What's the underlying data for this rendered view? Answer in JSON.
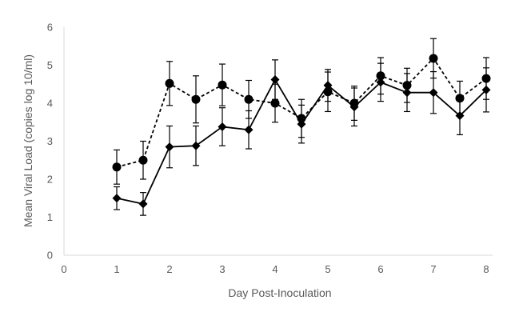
{
  "chart_data": {
    "type": "line",
    "title": "",
    "xlabel": "Day Post-Inoculation",
    "ylabel": "Mean Viral Load (copies log 10/ml)",
    "xlim": [
      0,
      8
    ],
    "ylim": [
      0,
      6
    ],
    "x_ticks": [
      "0",
      "1",
      "2",
      "3",
      "4",
      "5",
      "6",
      "7",
      "8"
    ],
    "y_ticks": [
      "0",
      "1",
      "2",
      "3",
      "4",
      "5",
      "6"
    ],
    "grid": false,
    "legend": "none",
    "x": [
      1,
      1.5,
      2,
      2.5,
      3,
      3.5,
      4,
      4.5,
      5,
      5.5,
      6,
      6.5,
      7,
      7.5,
      8
    ],
    "series": [
      {
        "style": "solid",
        "marker": "diamond",
        "color": "#000000",
        "values": [
          1.5,
          1.35,
          2.85,
          2.88,
          3.38,
          3.3,
          4.62,
          3.45,
          4.47,
          3.9,
          4.55,
          4.28,
          4.28,
          3.67,
          4.35
        ],
        "error": [
          0.3,
          0.3,
          0.55,
          0.52,
          0.5,
          0.5,
          0.52,
          0.5,
          0.42,
          0.5,
          0.5,
          0.5,
          0.55,
          0.5,
          0.58
        ]
      },
      {
        "style": "dashed",
        "marker": "circle",
        "color": "#000000",
        "values": [
          2.32,
          2.5,
          4.52,
          4.1,
          4.48,
          4.1,
          4.0,
          3.6,
          4.3,
          4.0,
          4.72,
          4.47,
          5.18,
          4.13,
          4.65
        ],
        "error": [
          0.45,
          0.5,
          0.58,
          0.62,
          0.55,
          0.5,
          0.5,
          0.5,
          0.52,
          0.45,
          0.48,
          0.45,
          0.52,
          0.45,
          0.55
        ]
      }
    ]
  }
}
